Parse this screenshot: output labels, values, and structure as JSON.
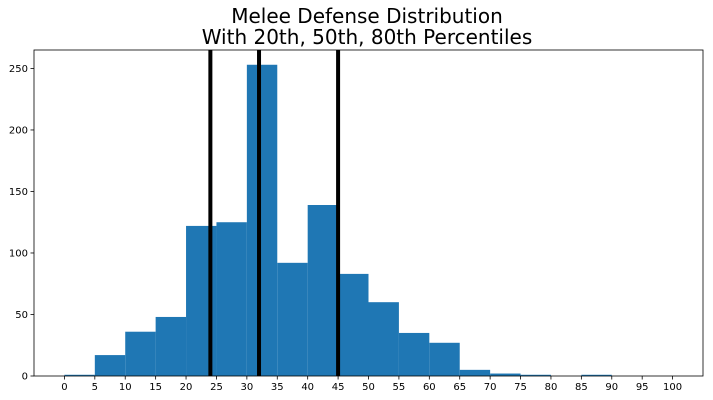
{
  "chart_data": {
    "type": "bar",
    "title_lines": [
      "Melee Defense Distribution",
      "With 20th, 50th, 80th Percentiles"
    ],
    "xlabel": "",
    "ylabel": "",
    "bin_width": 5,
    "bins": [
      {
        "start": 0,
        "end": 5,
        "count": 1
      },
      {
        "start": 5,
        "end": 10,
        "count": 17
      },
      {
        "start": 10,
        "end": 15,
        "count": 36
      },
      {
        "start": 15,
        "end": 20,
        "count": 48
      },
      {
        "start": 20,
        "end": 25,
        "count": 122
      },
      {
        "start": 25,
        "end": 30,
        "count": 125
      },
      {
        "start": 30,
        "end": 35,
        "count": 253
      },
      {
        "start": 35,
        "end": 40,
        "count": 92
      },
      {
        "start": 40,
        "end": 45,
        "count": 139
      },
      {
        "start": 45,
        "end": 50,
        "count": 83
      },
      {
        "start": 50,
        "end": 55,
        "count": 60
      },
      {
        "start": 55,
        "end": 60,
        "count": 35
      },
      {
        "start": 60,
        "end": 65,
        "count": 27
      },
      {
        "start": 65,
        "end": 70,
        "count": 5
      },
      {
        "start": 70,
        "end": 75,
        "count": 2
      },
      {
        "start": 75,
        "end": 80,
        "count": 1
      },
      {
        "start": 80,
        "end": 85,
        "count": 0
      },
      {
        "start": 85,
        "end": 90,
        "count": 1
      },
      {
        "start": 90,
        "end": 95,
        "count": 0
      },
      {
        "start": 95,
        "end": 100,
        "count": 0
      }
    ],
    "percentile_lines": [
      {
        "percentile": 20,
        "value": 24
      },
      {
        "percentile": 50,
        "value": 32
      },
      {
        "percentile": 80,
        "value": 45
      }
    ],
    "xticks": [
      0,
      5,
      10,
      15,
      20,
      25,
      30,
      35,
      40,
      45,
      50,
      55,
      60,
      65,
      70,
      75,
      80,
      85,
      90,
      95,
      100
    ],
    "yticks": [
      0,
      50,
      100,
      150,
      200,
      250
    ],
    "xlim": [
      -5,
      105
    ],
    "ylim": [
      0,
      265
    ],
    "grid": false,
    "legend": "none",
    "bar_color": "#1f77b4",
    "line_color": "#000000"
  }
}
